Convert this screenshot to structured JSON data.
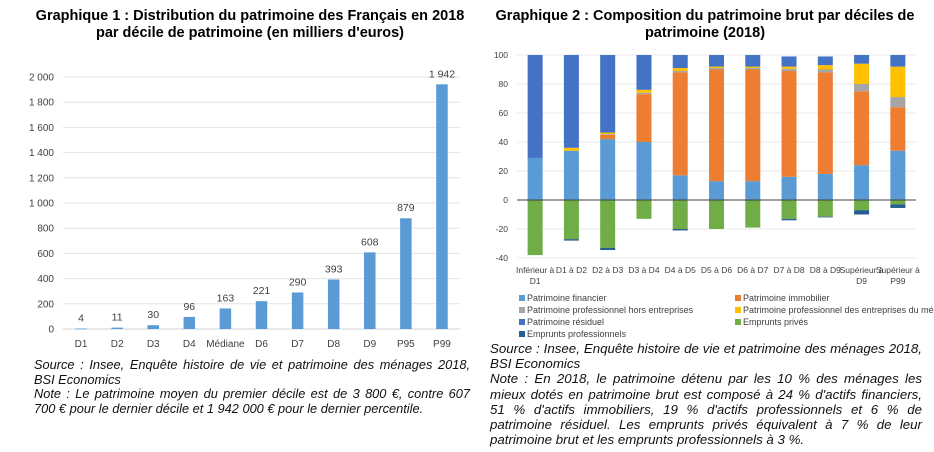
{
  "chart_data": [
    {
      "type": "bar",
      "title": "Graphique 1 : Distribution du patrimoine des Français en 2018 par décile de patrimoine (en milliers d'euros)",
      "categories": [
        "D1",
        "D2",
        "D3",
        "D4",
        "Médiane",
        "D6",
        "D7",
        "D8",
        "D9",
        "P95",
        "P99"
      ],
      "values": [
        4,
        11,
        30,
        96,
        163,
        221,
        290,
        393,
        608,
        879,
        1942
      ],
      "data_labels": [
        "4",
        "11",
        "30",
        "96",
        "163",
        "221",
        "290",
        "393",
        "608",
        "879",
        "1 942"
      ],
      "ylim": [
        0,
        2000
      ],
      "yticks": [
        0,
        200,
        400,
        600,
        800,
        1000,
        1200,
        1400,
        1600,
        1800,
        2000
      ],
      "ytick_labels": [
        "0",
        "200",
        "400",
        "600",
        "800",
        "1 000",
        "1 200",
        "1 400",
        "1 600",
        "1 800",
        "2 000"
      ],
      "xlabel": "",
      "ylabel": "",
      "grid": true,
      "color": "#5b9bd5",
      "source": "Source : Insee, Enquête histoire de vie et patrimoine des ménages 2018, BSI Economics",
      "note": "Note : Le patrimoine moyen du premier décile est de 3 800 €, contre 607 700 € pour le dernier décile et 1 942 000 € pour le dernier percentile."
    },
    {
      "type": "bar",
      "stacked": true,
      "title": "Graphique 2 : Composition du patrimoine brut par déciles de patrimoine (2018)",
      "categories": [
        "Inférieur à D1",
        "D1 à D2",
        "D2 à D3",
        "D3 à D4",
        "D4 à D5",
        "D5 à D6",
        "D6 à D7",
        "D7 à D8",
        "D8 à D9",
        "Supérieur à D9",
        "Supérieur à P99"
      ],
      "category_lines": [
        [
          "Inférieur à",
          "D1"
        ],
        [
          "D1 à D2"
        ],
        [
          "D2 à D3"
        ],
        [
          "D3 à D4"
        ],
        [
          "D4 à D5"
        ],
        [
          "D5 à D6"
        ],
        [
          "D6 à D7"
        ],
        [
          "D7 à D8"
        ],
        [
          "D8 à D9"
        ],
        [
          "Supérieur à",
          "D9"
        ],
        [
          "Supérieur à",
          "P99"
        ]
      ],
      "series": [
        {
          "name": "Patrimoine financier",
          "color": "#5b9bd5",
          "values": [
            29,
            34,
            42,
            40,
            17,
            13,
            13,
            16,
            18,
            24,
            34
          ]
        },
        {
          "name": "Patrimoine immobilier",
          "color": "#ed7d31",
          "values": [
            0,
            0,
            3,
            33,
            71,
            77,
            77,
            73,
            70,
            51,
            30
          ]
        },
        {
          "name": "Patrimoine professionnel hors entreprises",
          "color": "#a5a5a5",
          "values": [
            0,
            0,
            0.5,
            1,
            1,
            1,
            1,
            1.5,
            2,
            5,
            7
          ]
        },
        {
          "name": "Patrimoine professionnel des entreprises du ménage",
          "color": "#ffc000",
          "values": [
            0,
            2,
            1,
            2,
            2,
            1,
            1,
            1.5,
            3,
            14,
            21
          ]
        },
        {
          "name": "Patrimoine résiduel",
          "color": "#4472c4",
          "values": [
            71,
            64,
            53.5,
            24,
            9,
            8,
            8,
            7,
            6,
            6,
            8
          ]
        },
        {
          "name": "Emprunts privés",
          "color": "#70ad47",
          "values": [
            -38,
            -27,
            -33,
            -13,
            -20,
            -20,
            -19,
            -13,
            -11.5,
            -7,
            -3
          ]
        },
        {
          "name": "Emprunts professionnels",
          "color": "#255e91",
          "values": [
            0,
            -1,
            -1.5,
            0,
            -1,
            0,
            0,
            -1,
            -0.5,
            -3,
            -2.5
          ]
        }
      ],
      "ylim": [
        -40,
        100
      ],
      "yticks": [
        -40,
        -20,
        0,
        20,
        40,
        60,
        80,
        100
      ],
      "ytick_labels": [
        "-40",
        "-20",
        "0",
        "20",
        "40",
        "60",
        "80",
        "100"
      ],
      "xlabel": "",
      "ylabel": "",
      "grid": true,
      "legend_position": "bottom",
      "source": "Source : Insee, Enquête histoire de vie et patrimoine des ménages 2018, BSI Economics",
      "note": "Note : En 2018, le patrimoine détenu par les 10 % des ménages les mieux dotés en patrimoine brut est composé à 24 % d'actifs financiers, 51 % d'actifs immobiliers, 19 % d'actifs professionnels et 6 % de patrimoine résiduel. Les emprunts privés équivalent à 7 % de leur patrimoine brut et les emprunts professionnels à 3 %."
    }
  ],
  "titles": {
    "chart1": "Graphique 1 : Distribution du patrimoine des Français en 2018 par décile de patrimoine (en milliers d'euros)",
    "chart2": "Graphique 2 : Composition du patrimoine brut par déciles de patrimoine (2018)"
  },
  "notes": {
    "chart1_source": "Source : Insee, Enquête histoire de vie et patrimoine des ménages 2018, BSI Economics",
    "chart1_note": "Note : Le patrimoine moyen du premier décile est de 3 800 €, contre 607 700 € pour le dernier décile et 1 942 000 € pour le dernier percentile.",
    "chart2_source": "Source : Insee, Enquête histoire de vie et patrimoine des ménages 2018, BSI Economics",
    "chart2_note": "Note : En 2018, le patrimoine détenu par les 10 % des ménages les mieux dotés en patrimoine brut est composé à 24 % d'actifs financiers, 51 % d'actifs immobiliers, 19 % d'actifs professionnels et 6 % de patrimoine résiduel. Les emprunts privés équivalent à 7 % de leur patrimoine brut et les emprunts professionnels à 3 %."
  }
}
